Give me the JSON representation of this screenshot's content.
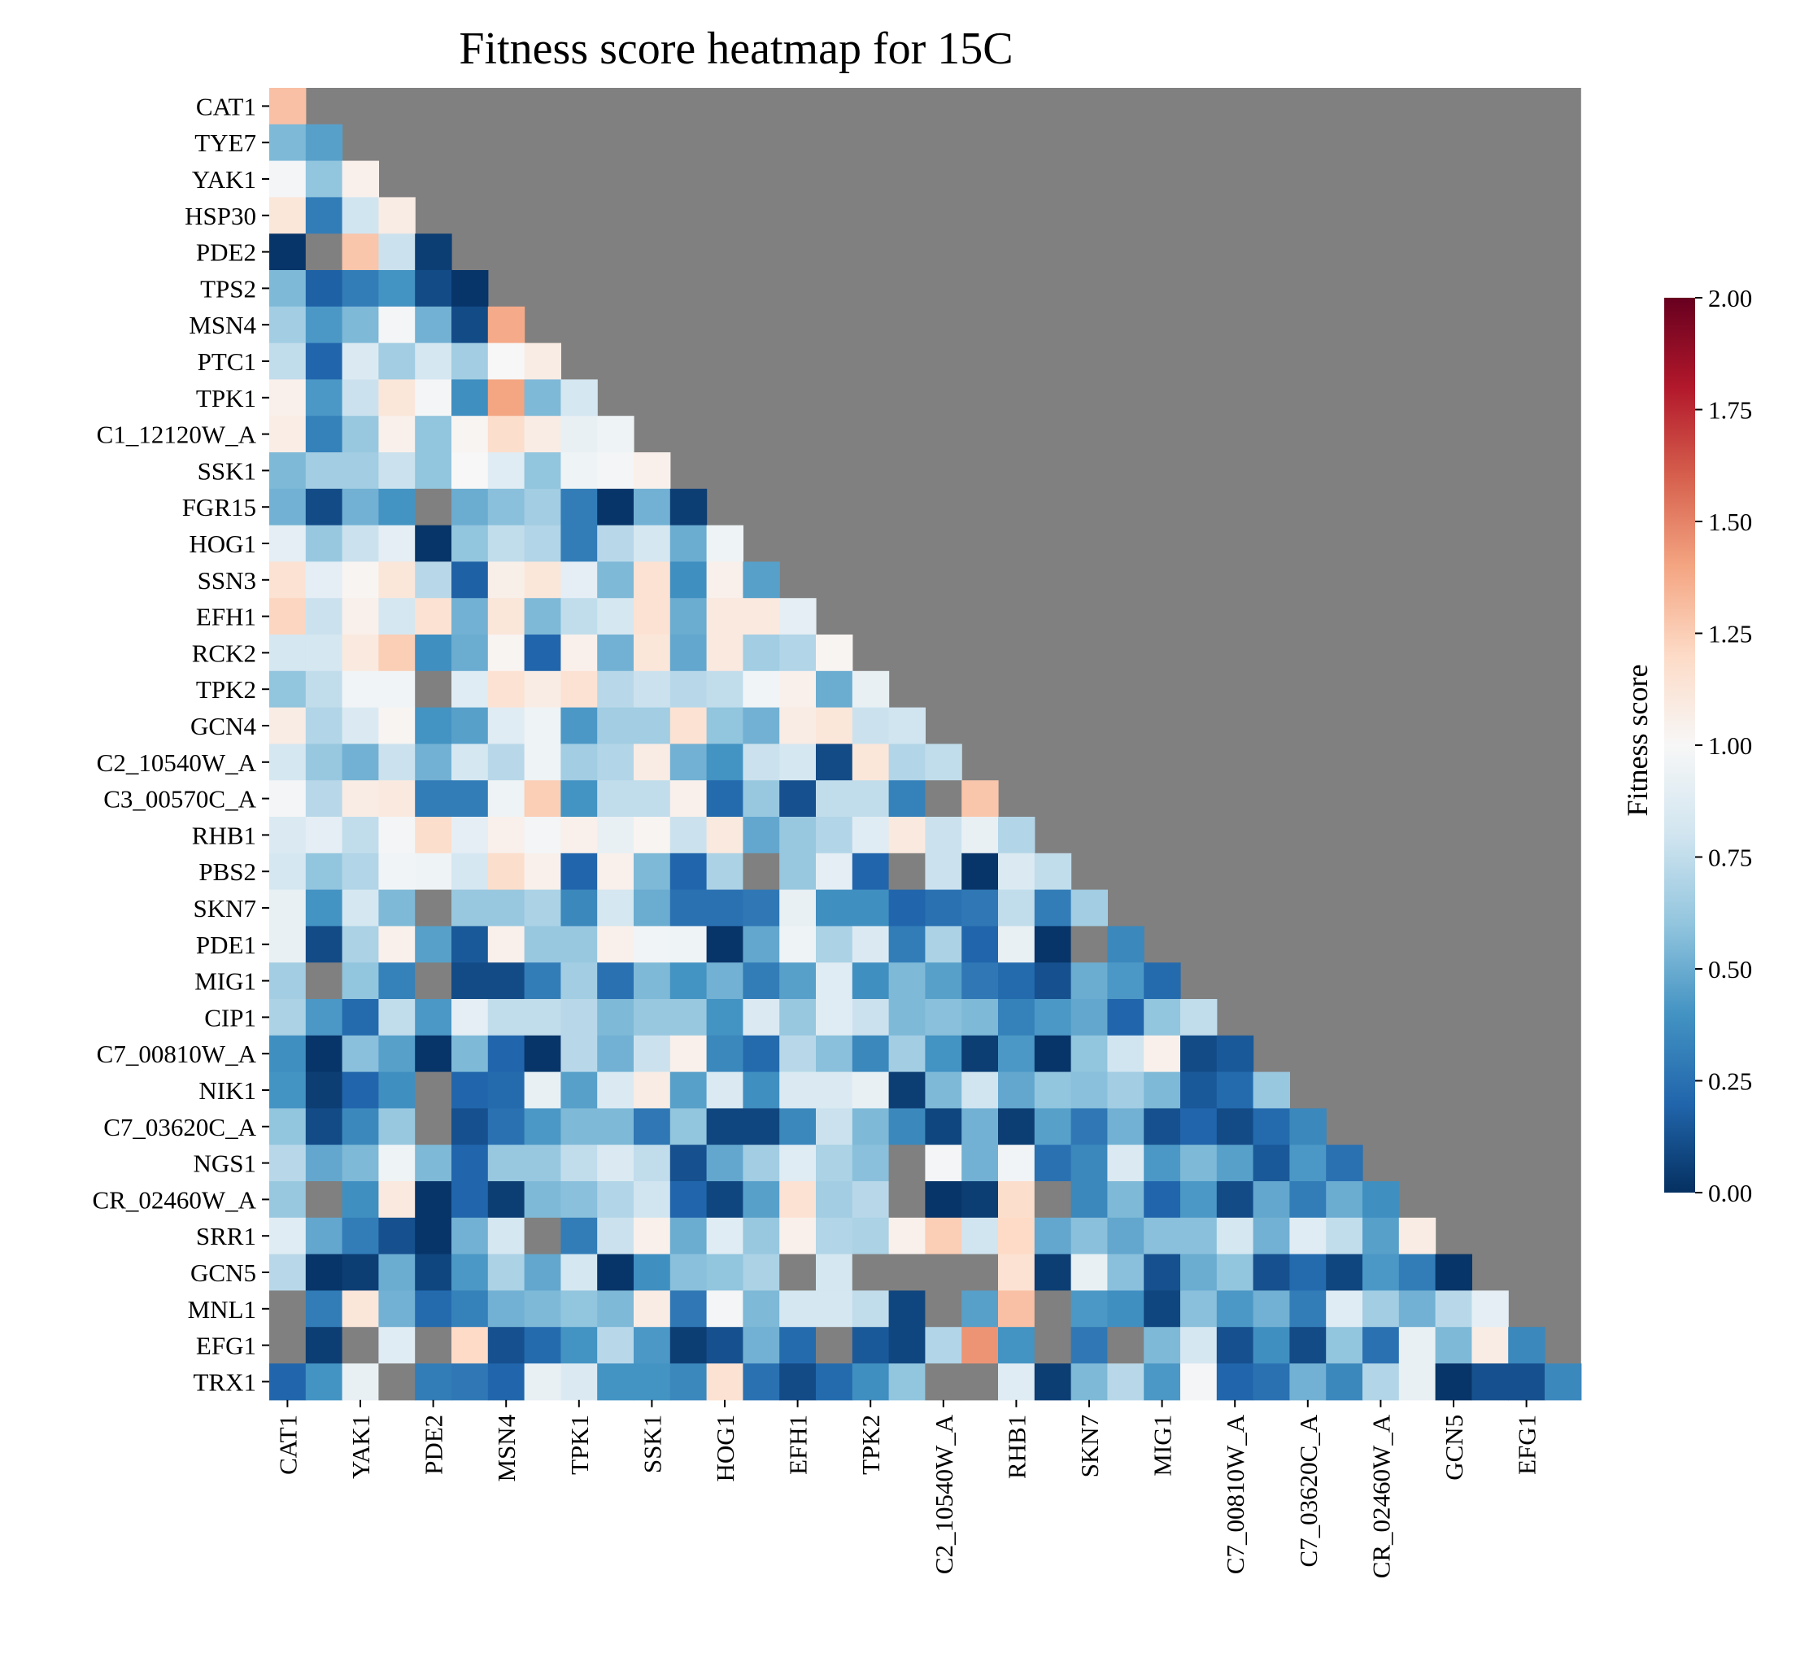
{
  "chart_data": {
    "type": "heatmap",
    "title": "Fitness score heatmap for 15C",
    "colorbar": {
      "label": "Fitness score",
      "min": 0.0,
      "max": 2.0,
      "ticks": [
        "0.00",
        "0.25",
        "0.50",
        "0.75",
        "1.00",
        "1.25",
        "1.50",
        "1.75",
        "2.00"
      ],
      "colormap": "RdBu_r",
      "stops": [
        "#053061",
        "#2166ac",
        "#4393c3",
        "#92c5de",
        "#d1e5f0",
        "#f7f7f7",
        "#fddbc7",
        "#f4a582",
        "#d6604d",
        "#b2182b",
        "#67001f"
      ]
    },
    "mask_color": "#808080",
    "ylabels": [
      "CAT1",
      "TYE7",
      "YAK1",
      "HSP30",
      "PDE2",
      "TPS2",
      "MSN4",
      "PTC1",
      "TPK1",
      "C1_12120W_A",
      "SSK1",
      "FGR15",
      "HOG1",
      "SSN3",
      "EFH1",
      "RCK2",
      "TPK2",
      "GCN4",
      "C2_10540W_A",
      "C3_00570C_A",
      "RHB1",
      "PBS2",
      "SKN7",
      "PDE1",
      "MIG1",
      "CIP1",
      "C7_00810W_A",
      "NIK1",
      "C7_03620C_A",
      "NGS1",
      "CR_02460W_A",
      "SRR1",
      "GCN5",
      "MNL1",
      "EFG1",
      "TRX1"
    ],
    "xlabels_shown": [
      "CAT1",
      "YAK1",
      "PDE2",
      "MSN4",
      "TPK1",
      "SSK1",
      "HOG1",
      "EFH1",
      "TPK2",
      "C2_10540W_A",
      "RHB1",
      "SKN7",
      "MIG1",
      "C7_00810W_A",
      "C7_03620C_A",
      "CR_02460W_A",
      "GCN5",
      "EFG1"
    ],
    "values": [
      [
        1.3
      ],
      [
        0.55,
        0.45
      ],
      [
        0.98,
        0.6,
        1.05
      ],
      [
        1.12,
        0.3,
        0.8,
        1.08
      ],
      [
        0.02,
        null,
        1.28,
        0.78,
        0.05
      ],
      [
        0.55,
        0.18,
        0.3,
        0.4,
        0.1,
        0.02
      ],
      [
        0.65,
        0.42,
        0.55,
        0.98,
        0.52,
        0.1,
        1.38
      ],
      [
        0.75,
        0.2,
        0.85,
        0.65,
        0.82,
        0.65,
        1.0,
        1.08
      ],
      [
        1.05,
        0.42,
        0.78,
        1.12,
        0.98,
        0.38,
        1.4,
        0.55,
        0.82
      ],
      [
        1.07,
        0.32,
        0.62,
        1.05,
        0.6,
        1.02,
        1.18,
        1.08,
        0.92,
        0.95
      ],
      [
        0.55,
        0.65,
        0.65,
        0.78,
        0.6,
        1.0,
        0.88,
        0.6,
        0.95,
        0.98,
        1.05
      ],
      [
        0.52,
        0.1,
        0.52,
        0.4,
        null,
        0.5,
        0.58,
        0.65,
        0.3,
        0.02,
        0.52,
        0.05
      ],
      [
        0.9,
        0.62,
        0.78,
        0.9,
        0.02,
        0.6,
        0.75,
        0.7,
        0.3,
        0.72,
        0.82,
        0.5,
        0.95
      ],
      [
        1.15,
        0.9,
        1.02,
        1.12,
        0.72,
        0.18,
        1.06,
        1.12,
        0.9,
        0.55,
        1.15,
        0.38,
        1.05,
        0.45
      ],
      [
        1.22,
        0.78,
        1.05,
        0.82,
        1.15,
        0.52,
        1.12,
        0.55,
        0.75,
        0.82,
        1.15,
        0.5,
        1.1,
        1.1,
        0.9
      ],
      [
        0.82,
        0.82,
        1.1,
        1.25,
        0.38,
        0.5,
        1.02,
        0.2,
        1.05,
        0.52,
        1.12,
        0.48,
        1.1,
        0.65,
        0.7,
        1.02
      ],
      [
        0.6,
        0.75,
        0.97,
        0.97,
        null,
        0.88,
        1.15,
        1.08,
        1.15,
        0.72,
        0.78,
        0.72,
        0.75,
        0.97,
        1.05,
        0.5,
        0.92
      ],
      [
        1.08,
        0.7,
        0.85,
        1.02,
        0.4,
        0.45,
        0.88,
        0.95,
        0.42,
        0.65,
        0.65,
        1.15,
        0.6,
        0.52,
        1.08,
        1.12,
        0.78,
        0.8
      ],
      [
        0.82,
        0.62,
        0.52,
        0.78,
        0.52,
        0.82,
        0.72,
        0.95,
        0.65,
        0.7,
        1.08,
        0.52,
        0.4,
        0.78,
        0.82,
        0.1,
        1.12,
        0.7,
        0.75
      ],
      [
        0.98,
        0.72,
        1.08,
        1.1,
        0.3,
        0.3,
        0.95,
        1.25,
        0.4,
        0.75,
        0.75,
        1.05,
        0.22,
        0.62,
        0.12,
        0.75,
        0.75,
        0.32,
        null,
        1.28
      ],
      [
        0.85,
        0.9,
        0.75,
        0.98,
        1.18,
        0.9,
        1.05,
        0.98,
        1.05,
        0.92,
        1.02,
        0.78,
        1.1,
        0.48,
        0.62,
        0.7,
        0.88,
        1.1,
        0.78,
        0.92,
        0.7
      ],
      [
        0.82,
        0.6,
        0.7,
        0.97,
        0.95,
        0.82,
        1.18,
        1.05,
        0.2,
        1.05,
        0.55,
        0.2,
        0.68,
        null,
        0.62,
        0.9,
        0.2,
        null,
        0.78,
        0.02,
        0.85,
        0.75
      ],
      [
        0.92,
        0.4,
        0.82,
        0.55,
        null,
        0.62,
        0.62,
        0.68,
        0.35,
        0.82,
        0.5,
        0.25,
        0.25,
        0.28,
        0.92,
        0.38,
        0.38,
        0.2,
        0.25,
        0.28,
        0.75,
        0.3,
        0.65
      ],
      [
        0.92,
        0.1,
        0.68,
        1.05,
        0.45,
        0.15,
        1.05,
        0.62,
        0.62,
        1.05,
        0.97,
        0.95,
        0.02,
        0.48,
        0.95,
        0.68,
        0.85,
        0.3,
        0.68,
        0.2,
        0.92,
        0.02,
        null,
        0.35
      ],
      [
        0.65,
        null,
        0.6,
        0.32,
        null,
        0.1,
        0.1,
        0.3,
        0.65,
        0.25,
        0.55,
        0.4,
        0.52,
        0.3,
        0.45,
        0.88,
        0.38,
        0.55,
        0.45,
        0.28,
        0.22,
        0.12,
        0.5,
        0.42,
        0.22
      ],
      [
        0.68,
        0.42,
        0.22,
        0.75,
        0.42,
        0.9,
        0.75,
        0.75,
        0.72,
        0.55,
        0.62,
        0.62,
        0.4,
        0.85,
        0.62,
        0.88,
        0.78,
        0.55,
        0.58,
        0.55,
        0.32,
        0.42,
        0.48,
        0.2,
        0.6,
        0.75
      ],
      [
        0.38,
        0.02,
        0.58,
        0.45,
        0.02,
        0.55,
        0.2,
        0.02,
        0.72,
        0.52,
        0.78,
        1.05,
        0.35,
        0.22,
        0.72,
        0.58,
        0.35,
        0.65,
        0.4,
        0.05,
        0.42,
        0.02,
        0.6,
        0.8,
        1.05,
        0.1,
        0.15
      ],
      [
        0.4,
        0.05,
        0.2,
        0.38,
        null,
        0.2,
        0.22,
        0.92,
        0.45,
        0.85,
        1.08,
        0.45,
        0.85,
        0.38,
        0.85,
        0.85,
        0.92,
        0.05,
        0.55,
        0.8,
        0.48,
        0.6,
        0.58,
        0.65,
        0.55,
        0.15,
        0.22,
        0.62
      ],
      [
        0.6,
        0.1,
        0.35,
        0.62,
        null,
        0.12,
        0.25,
        0.42,
        0.55,
        0.55,
        0.28,
        0.6,
        0.08,
        0.08,
        0.35,
        0.78,
        0.55,
        0.35,
        0.08,
        0.52,
        0.05,
        0.45,
        0.28,
        0.52,
        0.12,
        0.2,
        0.1,
        0.22,
        0.35
      ],
      [
        0.72,
        0.48,
        0.55,
        0.95,
        0.55,
        0.2,
        0.62,
        0.62,
        0.75,
        0.85,
        0.75,
        0.12,
        0.48,
        0.65,
        0.88,
        0.68,
        0.58,
        null,
        0.98,
        0.52,
        0.97,
        0.25,
        0.35,
        0.85,
        0.42,
        0.55,
        0.45,
        0.15,
        0.42,
        0.25
      ],
      [
        0.62,
        null,
        0.38,
        1.1,
        0.02,
        0.2,
        0.05,
        0.55,
        0.58,
        0.7,
        0.8,
        0.2,
        0.08,
        0.45,
        1.15,
        0.65,
        0.72,
        null,
        0.02,
        0.05,
        1.18,
        null,
        0.35,
        0.55,
        0.2,
        0.42,
        0.1,
        0.48,
        0.3,
        0.5,
        0.38
      ],
      [
        0.88,
        0.48,
        0.3,
        0.12,
        0.02,
        0.52,
        0.82,
        null,
        0.3,
        0.78,
        1.05,
        0.5,
        0.88,
        0.62,
        1.05,
        0.7,
        0.68,
        1.05,
        1.25,
        0.8,
        1.2,
        0.48,
        0.58,
        0.48,
        0.58,
        0.58,
        0.82,
        0.52,
        0.88,
        0.75,
        0.45,
        1.08
      ],
      [
        0.72,
        0.02,
        0.05,
        0.5,
        0.08,
        0.42,
        0.68,
        0.48,
        0.82,
        0.02,
        0.38,
        0.58,
        0.6,
        0.68,
        null,
        0.82,
        null,
        null,
        null,
        null,
        1.15,
        0.05,
        0.92,
        0.58,
        0.12,
        0.5,
        0.6,
        0.12,
        0.22,
        0.08,
        0.42,
        0.3,
        0.02
      ],
      [
        null,
        0.3,
        1.12,
        0.52,
        0.22,
        0.32,
        0.52,
        0.55,
        0.6,
        0.55,
        1.08,
        0.28,
        0.98,
        0.55,
        0.82,
        0.82,
        0.75,
        0.08,
        null,
        0.45,
        1.3,
        null,
        0.42,
        0.38,
        0.08,
        0.58,
        0.42,
        0.52,
        0.3,
        0.88,
        0.65,
        0.52,
        0.72,
        0.9
      ],
      [
        null,
        0.05,
        null,
        0.88,
        null,
        1.2,
        0.12,
        0.22,
        0.4,
        0.72,
        0.42,
        0.05,
        0.12,
        0.52,
        0.22,
        null,
        0.15,
        0.08,
        0.7,
        1.45,
        0.4,
        null,
        0.28,
        null,
        0.55,
        0.82,
        0.12,
        0.38,
        0.1,
        0.6,
        0.25,
        0.92,
        0.55,
        1.08,
        0.35
      ],
      [
        0.2,
        0.4,
        0.92,
        null,
        0.3,
        0.28,
        0.2,
        0.92,
        0.85,
        0.4,
        0.4,
        0.35,
        1.15,
        0.25,
        0.1,
        0.22,
        0.38,
        0.6,
        null,
        null,
        0.88,
        0.05,
        0.55,
        0.72,
        0.42,
        0.98,
        0.2,
        0.25,
        0.52,
        0.35,
        0.7,
        0.92,
        0.02,
        0.12,
        0.12,
        0.35
      ]
    ]
  }
}
